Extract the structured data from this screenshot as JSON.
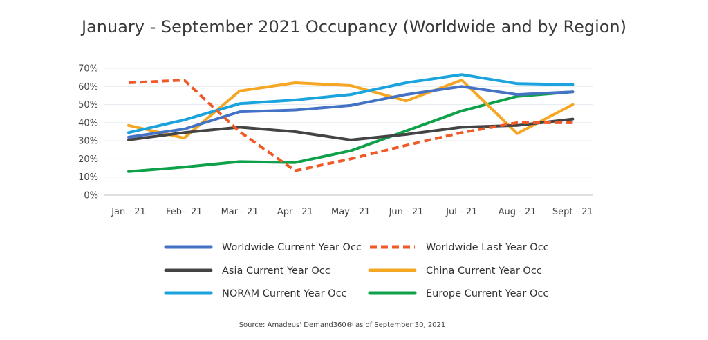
{
  "chart_data": {
    "type": "line",
    "title": "January - September 2021 Occupancy (Worldwide and by Region)",
    "categories": [
      "Jan - 21",
      "Feb - 21",
      "Mar - 21",
      "Apr - 21",
      "May - 21",
      "Jun - 21",
      "Jul - 21",
      "Aug - 21",
      "Sept - 21"
    ],
    "ylim": [
      0,
      70
    ],
    "yticks": [
      0,
      10,
      20,
      30,
      40,
      50,
      60,
      70
    ],
    "ytick_labels": [
      "0%",
      "10%",
      "20%",
      "30%",
      "40%",
      "50%",
      "60%",
      "70%"
    ],
    "grid": true,
    "series": [
      {
        "name": "Worldwide Current Year Occ",
        "color": "#4472c4",
        "dashed": false,
        "values": [
          32,
          36.5,
          46,
          47,
          49.5,
          55.5,
          60,
          55.5,
          57
        ]
      },
      {
        "name": "Worldwide Last Year Occ",
        "color": "#f05a28",
        "dashed": true,
        "values": [
          62,
          63.5,
          35,
          13.5,
          20,
          27.5,
          34.5,
          40,
          40
        ]
      },
      {
        "name": "Asia Current Year Occ",
        "color": "#444444",
        "dashed": false,
        "values": [
          30.5,
          34.5,
          37.5,
          35,
          30.5,
          33.5,
          37.5,
          38.5,
          42
        ]
      },
      {
        "name": "China Current Year Occ",
        "color": "#f5a623",
        "dashed": false,
        "values": [
          38.5,
          31.5,
          57.5,
          62,
          60.5,
          52,
          63.5,
          34,
          50
        ]
      },
      {
        "name": "NORAM Current Year Occ",
        "color": "#1aa3dc",
        "dashed": false,
        "values": [
          34.5,
          41.5,
          50.5,
          52.5,
          55.5,
          62,
          66.5,
          61.5,
          61
        ]
      },
      {
        "name": "Europe Current Year Occ",
        "color": "#0fa14a",
        "dashed": false,
        "values": [
          13,
          15.5,
          18.5,
          18,
          24.5,
          35.5,
          46.5,
          54.5,
          57
        ]
      }
    ],
    "legend_position": "bottom",
    "source": "Source: Amadeus' Demand360® as of September 30, 2021"
  }
}
